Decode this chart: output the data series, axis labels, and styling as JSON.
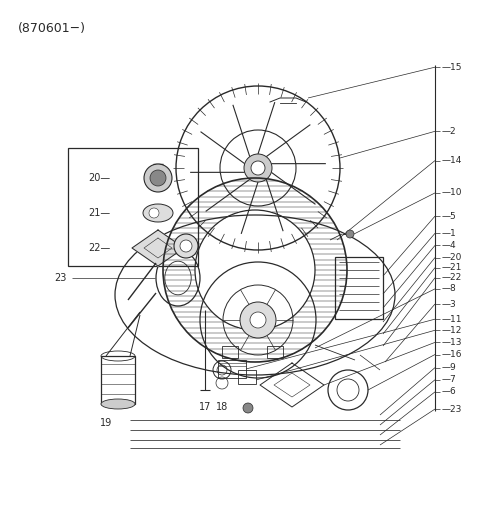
{
  "title": "(870601−)",
  "bg_color": "#ffffff",
  "line_color": "#2a2a2a",
  "text_color": "#2a2a2a",
  "fig_width": 4.8,
  "fig_height": 5.05,
  "dpi": 100,
  "right_labels": [
    [
      "15",
      0.867
    ],
    [
      "2",
      0.74
    ],
    [
      "14",
      0.682
    ],
    [
      "10",
      0.618
    ],
    [
      "5",
      0.572
    ],
    [
      "1",
      0.538
    ],
    [
      "4",
      0.514
    ],
    [
      "20",
      0.49
    ],
    [
      "21",
      0.47
    ],
    [
      "22",
      0.45
    ],
    [
      "8",
      0.428
    ],
    [
      "3",
      0.398
    ],
    [
      "11",
      0.368
    ],
    [
      "12",
      0.346
    ],
    [
      "13",
      0.322
    ],
    [
      "16",
      0.298
    ],
    [
      "9",
      0.272
    ],
    [
      "7",
      0.248
    ],
    [
      "6",
      0.224
    ],
    [
      "23",
      0.19
    ]
  ]
}
